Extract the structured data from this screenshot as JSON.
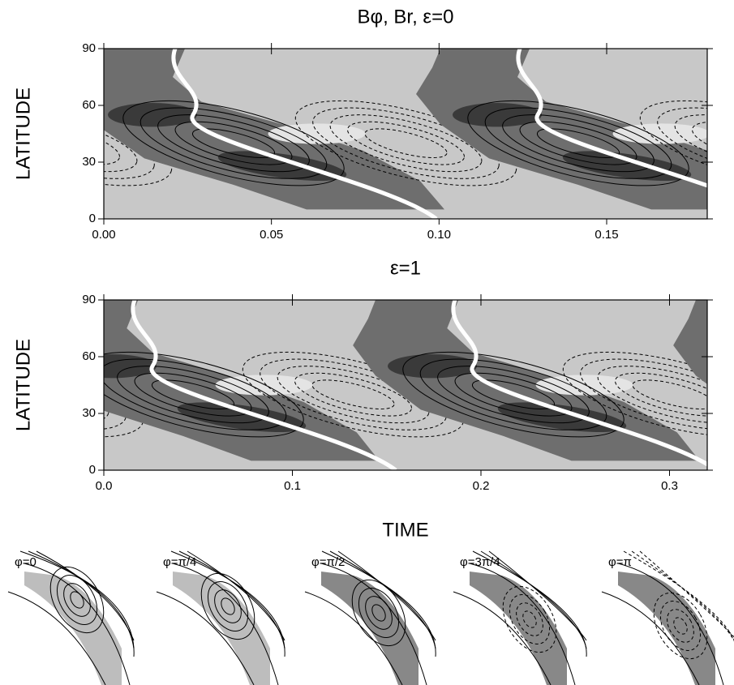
{
  "chart_data": [
    {
      "type": "contour",
      "title": "Bφ, Br, ε=0",
      "ylabel": "LATITUDE",
      "xlim": [
        0,
        0.18
      ],
      "xticks": [
        {
          "value": 0,
          "label": "0.00"
        },
        {
          "value": 0.05,
          "label": "0.05"
        },
        {
          "value": 0.1,
          "label": "0.10"
        },
        {
          "value": 0.15,
          "label": "0.15"
        }
      ],
      "ylim": [
        0,
        90
      ],
      "yticks": [
        0,
        30,
        60,
        90
      ]
    },
    {
      "type": "contour",
      "title": "ε=1",
      "ylabel": "LATITUDE",
      "xlabel": "TIME",
      "xlim": [
        0,
        0.32
      ],
      "xticks": [
        {
          "value": 0,
          "label": "0.0"
        },
        {
          "value": 0.1,
          "label": "0.1"
        },
        {
          "value": 0.2,
          "label": "0.2"
        },
        {
          "value": 0.3,
          "label": "0.3"
        }
      ],
      "ylim": [
        0,
        90
      ],
      "yticks": [
        0,
        30,
        60,
        90
      ]
    }
  ],
  "snapshots": [
    {
      "label": "φ=0"
    },
    {
      "label": "φ=π/4"
    },
    {
      "label": "φ=π/2"
    },
    {
      "label": "φ=3π/4"
    },
    {
      "label": "φ=π"
    }
  ]
}
